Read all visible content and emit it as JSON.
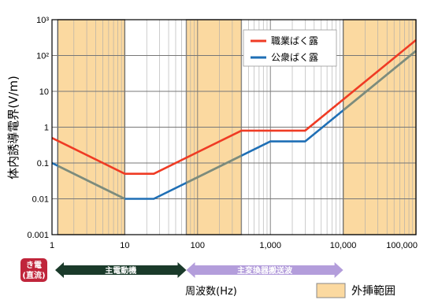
{
  "chart_data": {
    "type": "line",
    "x_scale": "log",
    "y_scale": "log",
    "xlim": [
      1,
      100000
    ],
    "ylim": [
      0.001,
      1000
    ],
    "xlabel": "周波数(Hz)",
    "ylabel": "体内誘導電界(V/m)",
    "x_ticks": [
      "1",
      "10",
      "100",
      "1,000",
      "10,000",
      "100,000"
    ],
    "y_ticks": [
      "0.001",
      "0.01",
      "0.1",
      "1",
      "10",
      "10²",
      "10³"
    ],
    "grid": true,
    "legend_position": "top-center",
    "series": [
      {
        "name": "職業ばく露",
        "color": "#ef3b24",
        "x": [
          1,
          10,
          25,
          400,
          3000,
          100000
        ],
        "y": [
          0.5,
          0.05,
          0.05,
          0.8,
          0.8,
          270
        ]
      },
      {
        "name": "公衆ばく露",
        "color": "#1f6fb5",
        "x": [
          1,
          10,
          25,
          1000,
          3000,
          100000
        ],
        "y": [
          0.1,
          0.01,
          0.01,
          0.4,
          0.4,
          135
        ]
      }
    ],
    "extrapolation_regions": [
      [
        1.2,
        10
      ],
      [
        70,
        400
      ],
      [
        10000,
        100000
      ]
    ],
    "extrapolation_label": "外挿範囲",
    "bands": [
      {
        "label": "主電動機",
        "x_start": 1,
        "x_end": 70,
        "color": "#1a3a2a"
      },
      {
        "label": "主変換器搬送波",
        "x_start": 70,
        "x_end": 10000,
        "color": "#b39ddb"
      }
    ],
    "dc_tag": {
      "line1": "き電",
      "line2": "(直流)",
      "color": "#c0253b"
    }
  }
}
